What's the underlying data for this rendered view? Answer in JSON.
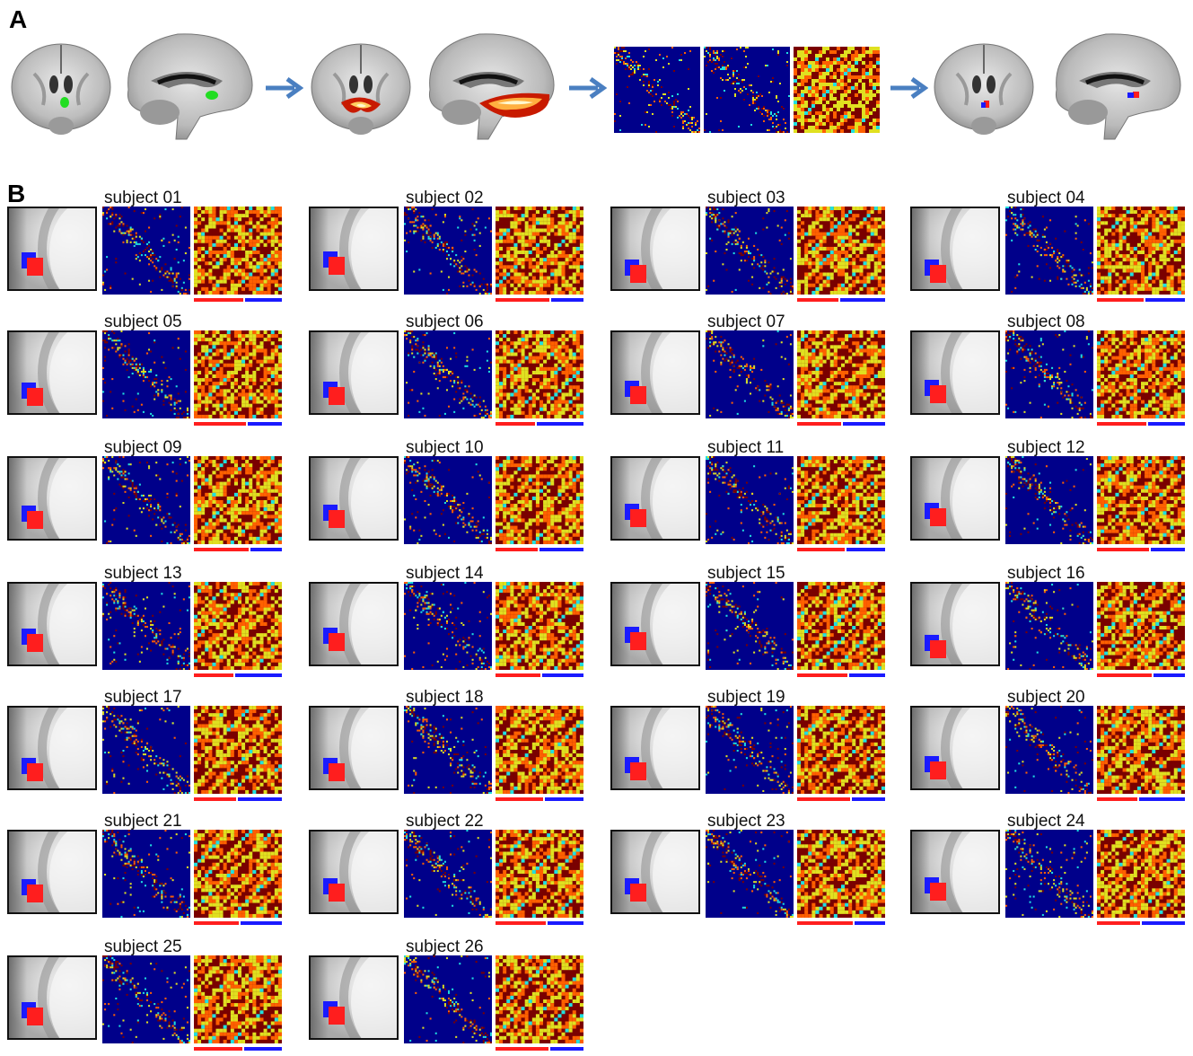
{
  "panels": {
    "a_label": "A",
    "b_label": "B"
  },
  "colors": {
    "arrow": "#4a7fc1",
    "cluster_red": "#ff1e1e",
    "cluster_blue": "#1a1aff",
    "seed_green": "#22dd22",
    "matrix_bg": "#00008a"
  },
  "pipeline": {
    "steps": [
      "seed-roi-brain",
      "connectivity-map-brain",
      "connectivity-matrices",
      "parcellation-brain"
    ]
  },
  "subjects": [
    {
      "label": "subject 01"
    },
    {
      "label": "subject 02"
    },
    {
      "label": "subject 03"
    },
    {
      "label": "subject 04"
    },
    {
      "label": "subject 05"
    },
    {
      "label": "subject 06"
    },
    {
      "label": "subject 07"
    },
    {
      "label": "subject 08"
    },
    {
      "label": "subject 09"
    },
    {
      "label": "subject 10"
    },
    {
      "label": "subject 11"
    },
    {
      "label": "subject 12"
    },
    {
      "label": "subject 13"
    },
    {
      "label": "subject 14"
    },
    {
      "label": "subject 15"
    },
    {
      "label": "subject 16"
    },
    {
      "label": "subject 17"
    },
    {
      "label": "subject 18"
    },
    {
      "label": "subject 19"
    },
    {
      "label": "subject 20"
    },
    {
      "label": "subject 21"
    },
    {
      "label": "subject 22"
    },
    {
      "label": "subject 23"
    },
    {
      "label": "subject 24"
    },
    {
      "label": "subject 25"
    },
    {
      "label": "subject 26"
    }
  ]
}
